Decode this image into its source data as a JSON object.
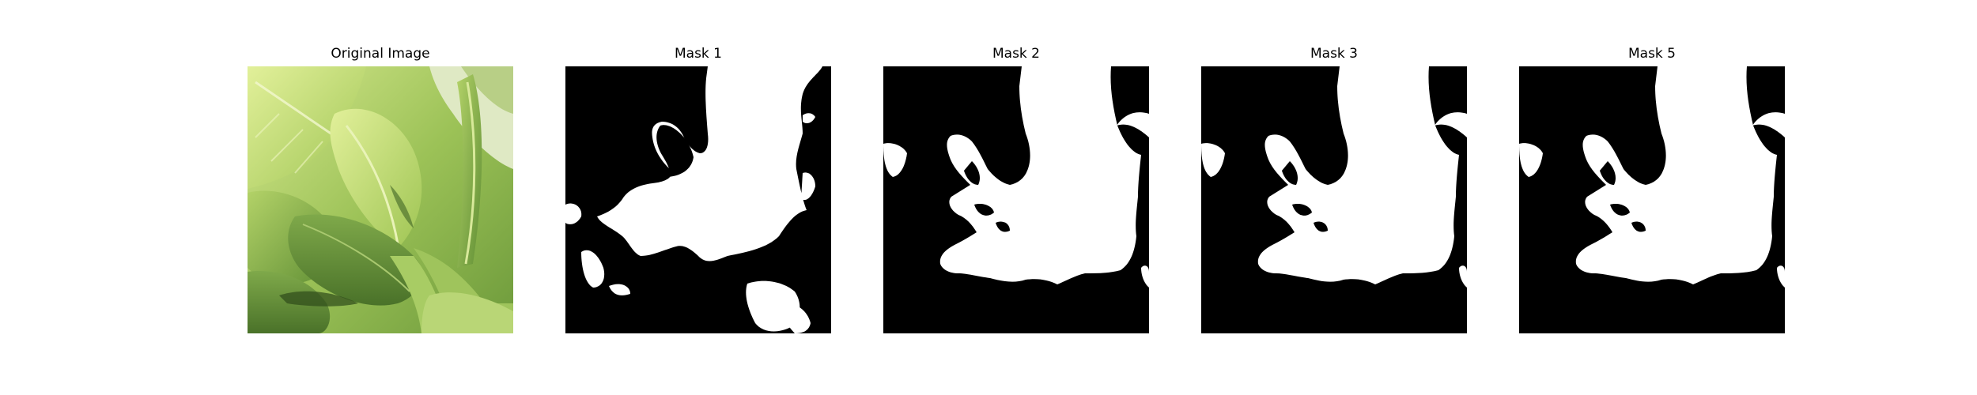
{
  "panels": [
    {
      "title": "Original Image",
      "kind": "photo",
      "subject": "green leafy plant close-up"
    },
    {
      "title": "Mask 1",
      "kind": "mask"
    },
    {
      "title": "Mask 2",
      "kind": "mask"
    },
    {
      "title": "Mask 3",
      "kind": "mask"
    },
    {
      "title": "Mask 5",
      "kind": "mask"
    }
  ],
  "colors": {
    "mask_background": "#000000",
    "mask_foreground": "#ffffff",
    "leaf_light": "#c9e07a",
    "leaf_mid": "#8fb84a",
    "leaf_dark": "#4f7a2e"
  }
}
